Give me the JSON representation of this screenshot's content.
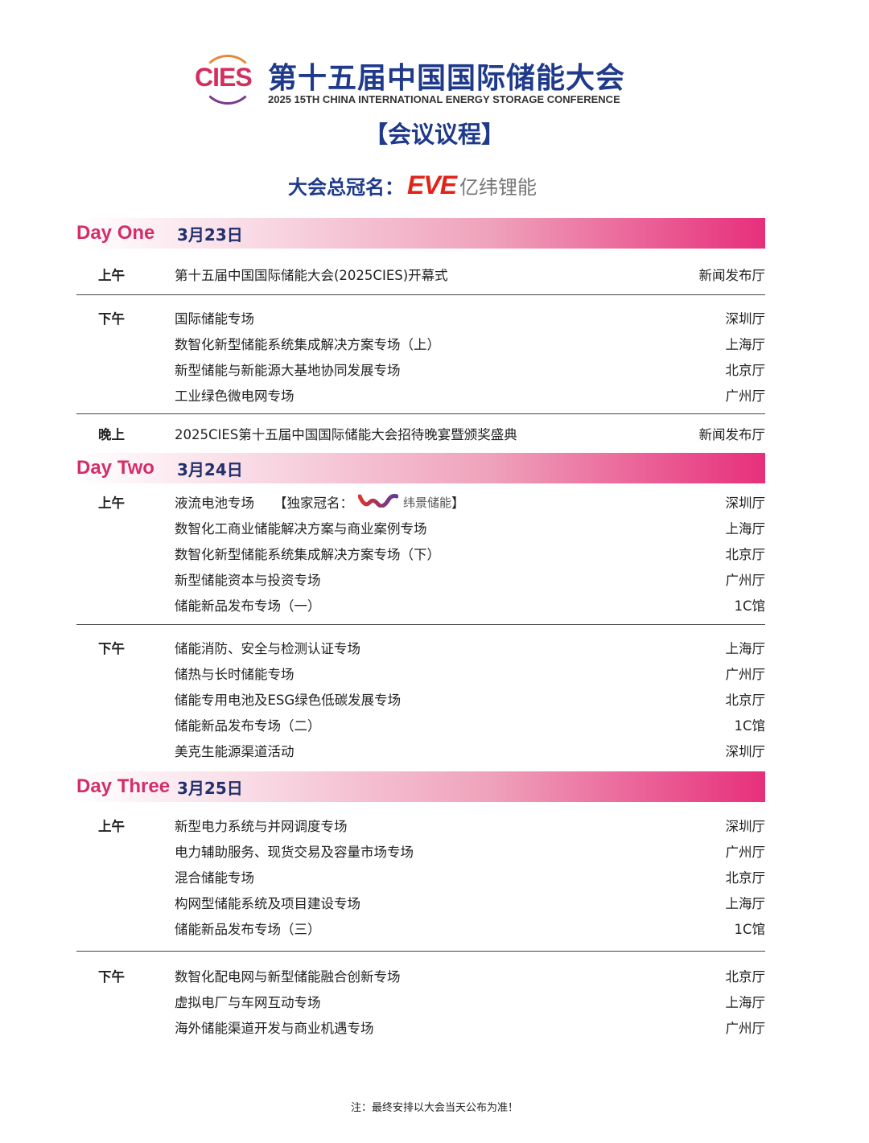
{
  "header": {
    "logo_text": "CIES",
    "title_zh": "第十五届中国国际储能大会",
    "title_en": "2025 15TH CHINA INTERNATIONAL ENERGY STORAGE CONFERENCE",
    "agenda": "【会议议程】",
    "sponsor_label": "大会总冠名：",
    "sponsor_logo": "EVE",
    "sponsor_name": "亿纬锂能"
  },
  "colors": {
    "brand_blue": "#1f3a8a",
    "brand_pink": "#d42e6a",
    "eve_red": "#e2231a"
  },
  "days": [
    {
      "label": "Day One",
      "date": "3月23日",
      "sessions": [
        {
          "name": "上午",
          "items": [
            {
              "topic": "第十五届中国国际储能大会(2025CIES)开幕式",
              "venue": "新闻发布厅"
            }
          ]
        },
        {
          "name": "下午",
          "items": [
            {
              "topic": "国际储能专场",
              "venue": "深圳厅"
            },
            {
              "topic": "数智化新型储能系统集成解决方案专场（上）",
              "venue": "上海厅"
            },
            {
              "topic": "新型储能与新能源大基地协同发展专场",
              "venue": "北京厅"
            },
            {
              "topic": "工业绿色微电网专场",
              "venue": "广州厅"
            }
          ]
        },
        {
          "name": "晚上",
          "items": [
            {
              "topic": "2025CIES第十五届中国国际储能大会招待晚宴暨颁奖盛典",
              "venue": "新闻发布厅"
            }
          ]
        }
      ]
    },
    {
      "label": "Day Two",
      "date": "3月24日",
      "sessions": [
        {
          "name": "上午",
          "items": [
            {
              "topic": "液流电池专场",
              "venue": "深圳厅",
              "exclusive": {
                "open": "【独家冠名：",
                "brand": "纬景储能",
                "close": "】"
              }
            },
            {
              "topic": "数智化工商业储能解决方案与商业案例专场",
              "venue": "上海厅"
            },
            {
              "topic": "数智化新型储能系统集成解决方案专场（下）",
              "venue": "北京厅"
            },
            {
              "topic": "新型储能资本与投资专场",
              "venue": "广州厅"
            },
            {
              "topic": "储能新品发布专场（一）",
              "venue": "1C馆"
            }
          ]
        },
        {
          "name": "下午",
          "items": [
            {
              "topic": "储能消防、安全与检测认证专场",
              "venue": "上海厅"
            },
            {
              "topic": "储热与长时储能专场",
              "venue": "广州厅"
            },
            {
              "topic": "储能专用电池及ESG绿色低碳发展专场",
              "venue": "北京厅"
            },
            {
              "topic": "储能新品发布专场（二）",
              "venue": "1C馆"
            },
            {
              "topic": "美克生能源渠道活动",
              "venue": "深圳厅"
            }
          ]
        }
      ]
    },
    {
      "label": "Day Three",
      "date": "3月25日",
      "sessions": [
        {
          "name": "上午",
          "items": [
            {
              "topic": "新型电力系统与并网调度专场",
              "venue": "深圳厅"
            },
            {
              "topic": "电力辅助服务、现货交易及容量市场专场",
              "venue": "广州厅"
            },
            {
              "topic": "混合储能专场",
              "venue": "北京厅"
            },
            {
              "topic": "构网型储能系统及项目建设专场",
              "venue": "上海厅"
            },
            {
              "topic": "储能新品发布专场（三）",
              "venue": "1C馆"
            }
          ]
        },
        {
          "name": "下午",
          "items": [
            {
              "topic": "数智化配电网与新型储能融合创新专场",
              "venue": "北京厅"
            },
            {
              "topic": "虚拟电厂与车网互动专场",
              "venue": "上海厅"
            },
            {
              "topic": "海外储能渠道开发与商业机遇专场",
              "venue": "广州厅"
            }
          ]
        }
      ]
    }
  ],
  "footer_note": "注：最终安排以大会当天公布为准！"
}
